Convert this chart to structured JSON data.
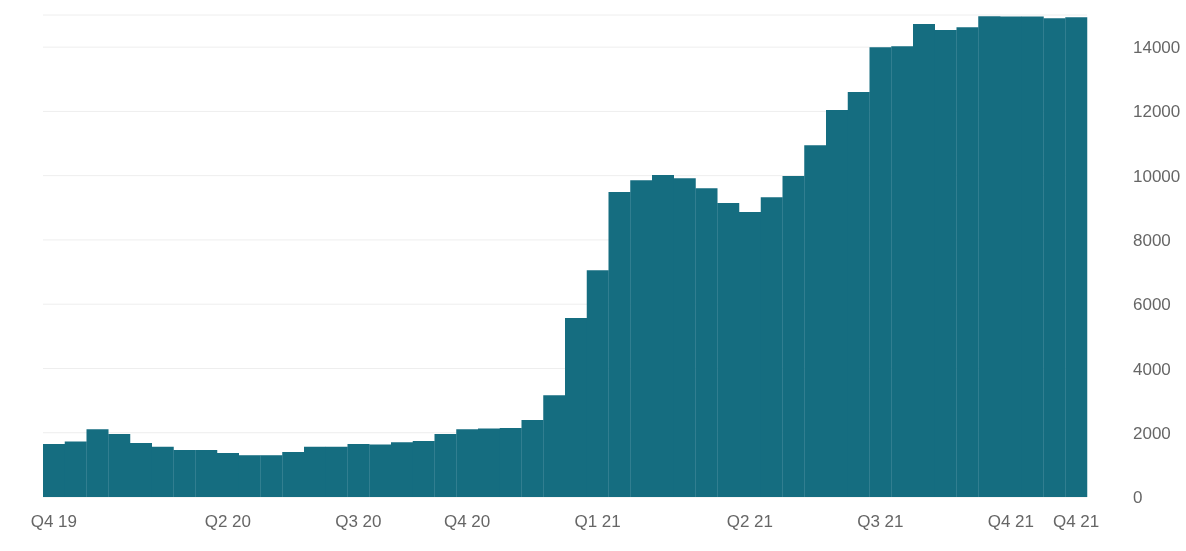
{
  "chart_data": {
    "type": "bar",
    "categories": [
      "Q4 19",
      null,
      null,
      null,
      null,
      null,
      null,
      null,
      "Q2 20",
      null,
      null,
      null,
      null,
      null,
      "Q3 20",
      null,
      null,
      null,
      null,
      "Q4 20",
      null,
      null,
      null,
      null,
      null,
      "Q1 21",
      null,
      null,
      null,
      null,
      null,
      null,
      "Q2 21",
      null,
      null,
      null,
      null,
      null,
      "Q3 21",
      null,
      null,
      null,
      null,
      null,
      "Q4 21",
      null,
      null,
      "Q4 21"
    ],
    "values": [
      1650,
      1730,
      2110,
      1960,
      1680,
      1560,
      1460,
      1460,
      1370,
      1300,
      1300,
      1400,
      1560,
      1560,
      1650,
      1630,
      1700,
      1740,
      1960,
      2110,
      2130,
      2150,
      2400,
      3170,
      5570,
      7060,
      9490,
      9860,
      10020,
      9920,
      9610,
      9150,
      8870,
      9330,
      9990,
      10950,
      12040,
      12600,
      14000,
      14030,
      14720,
      14530,
      14620,
      14960,
      14950,
      14950,
      14900,
      14930
    ],
    "color": "#156d80",
    "ylim": [
      0,
      15000
    ],
    "yticks": [
      0,
      2000,
      4000,
      6000,
      8000,
      10000,
      12000,
      14000
    ],
    "grid": "y"
  }
}
